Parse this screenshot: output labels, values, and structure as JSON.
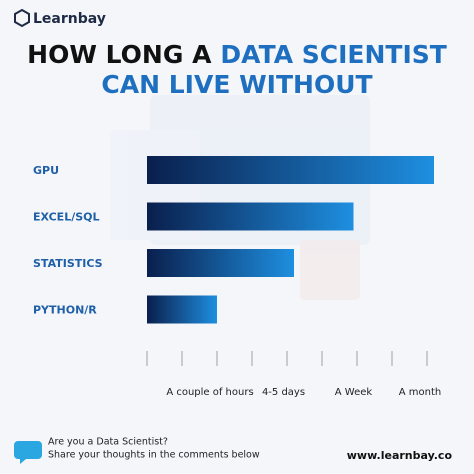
{
  "brand": "Learnbay",
  "chart_data": {
    "type": "bar",
    "orientation": "horizontal",
    "title_parts": [
      {
        "text": "HOW LONG A",
        "color": "#111111"
      },
      {
        "text": "DATA SCIENTIST",
        "color": "#1f6fc0"
      },
      {
        "text": "CAN LIVE WITHOUT",
        "color": "#1f6fc0"
      }
    ],
    "categories": [
      "GPU",
      "EXCEL/SQL",
      "STATISTICS",
      "PYTHON/R"
    ],
    "values": [
      8.2,
      5.9,
      4.2,
      2.0
    ],
    "colors": [
      "#0a1f4d",
      "#1e8fe0"
    ],
    "category_color": "#1f5fa8",
    "xlim": [
      0,
      8.3
    ],
    "xticks": [
      {
        "value": 1.8,
        "label": "A couple of hours"
      },
      {
        "value": 3.9,
        "label": "4-5 days"
      },
      {
        "value": 5.9,
        "label": "A Week"
      },
      {
        "value": 7.8,
        "label": "A month"
      }
    ],
    "minor_xticks": [
      0,
      1,
      2,
      3,
      4,
      5,
      6,
      7,
      8
    ]
  },
  "footer": {
    "question": "Are you a Data Scientist?",
    "prompt": "Share your thoughts in the comments below",
    "website": "www.learnbay.co"
  }
}
